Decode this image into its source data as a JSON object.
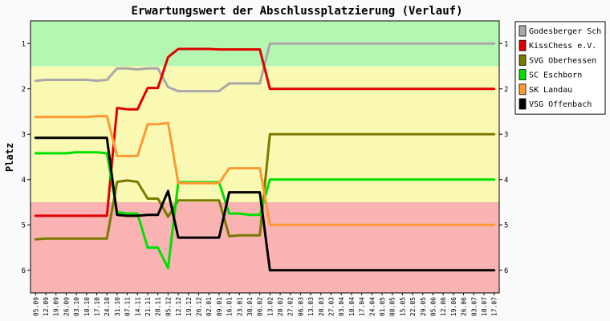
{
  "chart_data": {
    "type": "line",
    "title": "Erwartungswert der Abschlussplatzierung (Verlauf)",
    "ylabel": "Platz",
    "xlabel": "",
    "ylim": [
      6.5,
      0.5
    ],
    "yticks": [
      1,
      2,
      3,
      4,
      5,
      6
    ],
    "legend_position": "right",
    "grid": false,
    "bands": [
      {
        "from": 0.5,
        "to": 1.5,
        "color": "#b3f7b3"
      },
      {
        "from": 1.5,
        "to": 4.5,
        "color": "#f9f9b3"
      },
      {
        "from": 4.5,
        "to": 6.5,
        "color": "#f9b3b3"
      }
    ],
    "categories": [
      "05.09",
      "12.09",
      "19.09",
      "26.09",
      "03.10",
      "10.10",
      "17.10",
      "24.10",
      "31.10",
      "07.11",
      "14.11",
      "21.11",
      "28.11",
      "05.12",
      "12.12",
      "19.12",
      "26.12",
      "02.01",
      "09.01",
      "16.01",
      "23.01",
      "30.01",
      "06.02",
      "13.02",
      "20.02",
      "27.02",
      "06.03",
      "13.03",
      "20.03",
      "27.03",
      "03.04",
      "10.04",
      "17.04",
      "24.04",
      "01.05",
      "08.05",
      "15.05",
      "22.05",
      "29.05",
      "05.06",
      "12.06",
      "19.06",
      "26.06",
      "03.07",
      "10.07",
      "17.07"
    ],
    "series": [
      {
        "name": "Godesberger Sch",
        "color": "#a8a8a8",
        "values": [
          1.82,
          1.8,
          1.8,
          1.8,
          1.8,
          1.8,
          1.82,
          1.8,
          1.55,
          1.55,
          1.57,
          1.55,
          1.55,
          1.96,
          2.05,
          2.05,
          2.05,
          2.05,
          2.05,
          1.88,
          1.88,
          1.88,
          1.88,
          1.0,
          1.0,
          1.0,
          1.0,
          1.0,
          1.0,
          1.0,
          1.0,
          1.0,
          1.0,
          1.0,
          1.0,
          1.0,
          1.0,
          1.0,
          1.0,
          1.0,
          1.0,
          1.0,
          1.0,
          1.0,
          1.0,
          1.0
        ]
      },
      {
        "name": "KissChess e.V.",
        "color": "#e00000",
        "values": [
          4.8,
          4.8,
          4.8,
          4.8,
          4.8,
          4.8,
          4.8,
          4.8,
          2.42,
          2.45,
          2.45,
          1.98,
          1.98,
          1.3,
          1.12,
          1.12,
          1.12,
          1.12,
          1.13,
          1.13,
          1.13,
          1.13,
          1.13,
          2.0,
          2.0,
          2.0,
          2.0,
          2.0,
          2.0,
          2.0,
          2.0,
          2.0,
          2.0,
          2.0,
          2.0,
          2.0,
          2.0,
          2.0,
          2.0,
          2.0,
          2.0,
          2.0,
          2.0,
          2.0,
          2.0,
          2.0
        ]
      },
      {
        "name": "SVG Oberhessen",
        "color": "#7a7a00",
        "values": [
          5.32,
          5.3,
          5.3,
          5.3,
          5.3,
          5.3,
          5.3,
          5.3,
          4.05,
          4.02,
          4.05,
          4.42,
          4.42,
          4.82,
          4.46,
          4.46,
          4.46,
          4.46,
          4.46,
          5.25,
          5.23,
          5.23,
          5.23,
          3.0,
          3.0,
          3.0,
          3.0,
          3.0,
          3.0,
          3.0,
          3.0,
          3.0,
          3.0,
          3.0,
          3.0,
          3.0,
          3.0,
          3.0,
          3.0,
          3.0,
          3.0,
          3.0,
          3.0,
          3.0,
          3.0,
          3.0
        ]
      },
      {
        "name": "SC Eschborn",
        "color": "#00e000",
        "values": [
          3.42,
          3.42,
          3.42,
          3.42,
          3.4,
          3.4,
          3.4,
          3.42,
          4.72,
          4.75,
          4.75,
          5.5,
          5.5,
          5.95,
          4.06,
          4.06,
          4.06,
          4.06,
          4.06,
          4.75,
          4.75,
          4.78,
          4.78,
          4.0,
          4.0,
          4.0,
          4.0,
          4.0,
          4.0,
          4.0,
          4.0,
          4.0,
          4.0,
          4.0,
          4.0,
          4.0,
          4.0,
          4.0,
          4.0,
          4.0,
          4.0,
          4.0,
          4.0,
          4.0,
          4.0,
          4.0
        ]
      },
      {
        "name": "SK Landau",
        "color": "#ff9933",
        "values": [
          2.62,
          2.62,
          2.62,
          2.62,
          2.62,
          2.62,
          2.6,
          2.6,
          3.48,
          3.48,
          3.48,
          2.78,
          2.78,
          2.75,
          4.08,
          4.08,
          4.08,
          4.08,
          4.08,
          3.75,
          3.75,
          3.75,
          3.75,
          5.0,
          5.0,
          5.0,
          5.0,
          5.0,
          5.0,
          5.0,
          5.0,
          5.0,
          5.0,
          5.0,
          5.0,
          5.0,
          5.0,
          5.0,
          5.0,
          5.0,
          5.0,
          5.0,
          5.0,
          5.0,
          5.0,
          5.0
        ]
      },
      {
        "name": "VSG Offenbach",
        "color": "#000000",
        "values": [
          3.08,
          3.08,
          3.08,
          3.08,
          3.08,
          3.08,
          3.08,
          3.08,
          4.78,
          4.8,
          4.8,
          4.78,
          4.78,
          4.25,
          5.28,
          5.28,
          5.28,
          5.28,
          5.28,
          4.28,
          4.28,
          4.28,
          4.28,
          6.0,
          6.0,
          6.0,
          6.0,
          6.0,
          6.0,
          6.0,
          6.0,
          6.0,
          6.0,
          6.0,
          6.0,
          6.0,
          6.0,
          6.0,
          6.0,
          6.0,
          6.0,
          6.0,
          6.0,
          6.0,
          6.0,
          6.0
        ]
      }
    ]
  }
}
